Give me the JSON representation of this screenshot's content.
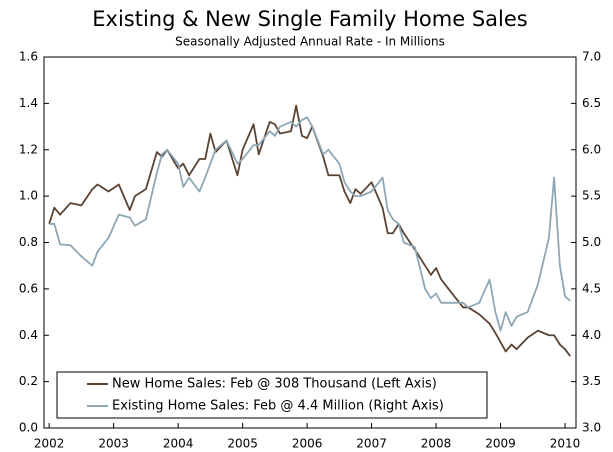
{
  "chart_data": {
    "type": "line",
    "title": "Existing & New Single Family Home Sales",
    "subtitle": "Seasonally Adjusted Annual Rate - In Millions",
    "x": [
      2002.0,
      2002.08,
      2002.17,
      2002.33,
      2002.5,
      2002.67,
      2002.75,
      2002.92,
      2003.08,
      2003.25,
      2003.33,
      2003.5,
      2003.67,
      2003.75,
      2003.83,
      2004.0,
      2004.08,
      2004.17,
      2004.33,
      2004.42,
      2004.5,
      2004.58,
      2004.75,
      2004.92,
      2005.0,
      2005.17,
      2005.25,
      2005.42,
      2005.5,
      2005.58,
      2005.75,
      2005.83,
      2005.92,
      2006.0,
      2006.08,
      2006.25,
      2006.33,
      2006.5,
      2006.58,
      2006.67,
      2006.75,
      2006.83,
      2007.0,
      2007.17,
      2007.25,
      2007.33,
      2007.42,
      2007.5,
      2007.67,
      2007.83,
      2007.92,
      2008.0,
      2008.08,
      2008.25,
      2008.42,
      2008.5,
      2008.67,
      2008.83,
      2008.92,
      2009.0,
      2009.08,
      2009.17,
      2009.25,
      2009.42,
      2009.58,
      2009.75,
      2009.83,
      2009.92,
      2010.0,
      2010.08
    ],
    "series": [
      {
        "name": "New Home Sales: Feb @ 308 Thousand (Left Axis)",
        "color": "#5a4333",
        "axis": "y",
        "values": [
          0.88,
          0.95,
          0.92,
          0.97,
          0.96,
          1.03,
          1.05,
          1.02,
          1.05,
          0.94,
          1.0,
          1.03,
          1.19,
          1.17,
          1.2,
          1.12,
          1.14,
          1.09,
          1.16,
          1.16,
          1.27,
          1.19,
          1.24,
          1.09,
          1.2,
          1.31,
          1.18,
          1.32,
          1.31,
          1.27,
          1.28,
          1.39,
          1.26,
          1.25,
          1.3,
          1.17,
          1.09,
          1.09,
          1.02,
          0.97,
          1.03,
          1.01,
          1.06,
          0.95,
          0.84,
          0.84,
          0.88,
          0.84,
          0.77,
          0.7,
          0.66,
          0.69,
          0.64,
          0.58,
          0.52,
          0.52,
          0.49,
          0.45,
          0.41,
          0.37,
          0.33,
          0.36,
          0.34,
          0.39,
          0.42,
          0.4,
          0.4,
          0.36,
          0.34,
          0.31
        ]
      },
      {
        "name": "Existing Home Sales: Feb @ 4.4 Million (Right Axis)",
        "color": "#8ea7b7",
        "axis": "y2",
        "values": [
          5.2,
          5.2,
          4.98,
          4.97,
          4.85,
          4.75,
          4.9,
          5.05,
          5.3,
          5.27,
          5.18,
          5.25,
          5.75,
          5.95,
          6.0,
          5.85,
          5.6,
          5.7,
          5.55,
          5.7,
          5.85,
          6.0,
          6.1,
          5.85,
          5.9,
          6.05,
          6.05,
          6.2,
          6.15,
          6.25,
          6.3,
          6.25,
          6.32,
          6.35,
          6.25,
          5.95,
          6.0,
          5.85,
          5.65,
          5.55,
          5.5,
          5.5,
          5.55,
          5.7,
          5.35,
          5.25,
          5.2,
          5.0,
          4.95,
          4.5,
          4.4,
          4.45,
          4.35,
          4.35,
          4.35,
          4.3,
          4.35,
          4.6,
          4.25,
          4.05,
          4.25,
          4.1,
          4.2,
          4.25,
          4.55,
          5.05,
          5.7,
          4.75,
          4.42,
          4.37
        ]
      }
    ],
    "xlim": [
      2001.92,
      2010.17
    ],
    "xticks": [
      2002,
      2003,
      2004,
      2005,
      2006,
      2007,
      2008,
      2009,
      2010
    ],
    "ylim": [
      0,
      1.6
    ],
    "yticks": [
      {
        "value": 0,
        "label": "0.0"
      },
      {
        "value": 0.2,
        "label": "0.2"
      },
      {
        "value": 0.4,
        "label": "0.4"
      },
      {
        "value": 0.6,
        "label": "0.6"
      },
      {
        "value": 0.8,
        "label": "0.8"
      },
      {
        "value": 1,
        "label": "1.0"
      },
      {
        "value": 1.2,
        "label": "1.2"
      },
      {
        "value": 1.4,
        "label": "1.4"
      },
      {
        "value": 1.6,
        "label": "1.6"
      }
    ],
    "y2lim": [
      3,
      7
    ],
    "y2ticks": [
      {
        "value": 3,
        "label": "3.0"
      },
      {
        "value": 3.5,
        "label": "3.5"
      },
      {
        "value": 4,
        "label": "4.0"
      },
      {
        "value": 4.5,
        "label": "4.5"
      },
      {
        "value": 5,
        "label": "5.0"
      },
      {
        "value": 5.5,
        "label": "5.5"
      },
      {
        "value": 6,
        "label": "6.0"
      },
      {
        "value": 6.5,
        "label": "6.5"
      },
      {
        "value": 7,
        "label": "7.0"
      }
    ],
    "grid": false,
    "legend": "bottom-left"
  }
}
